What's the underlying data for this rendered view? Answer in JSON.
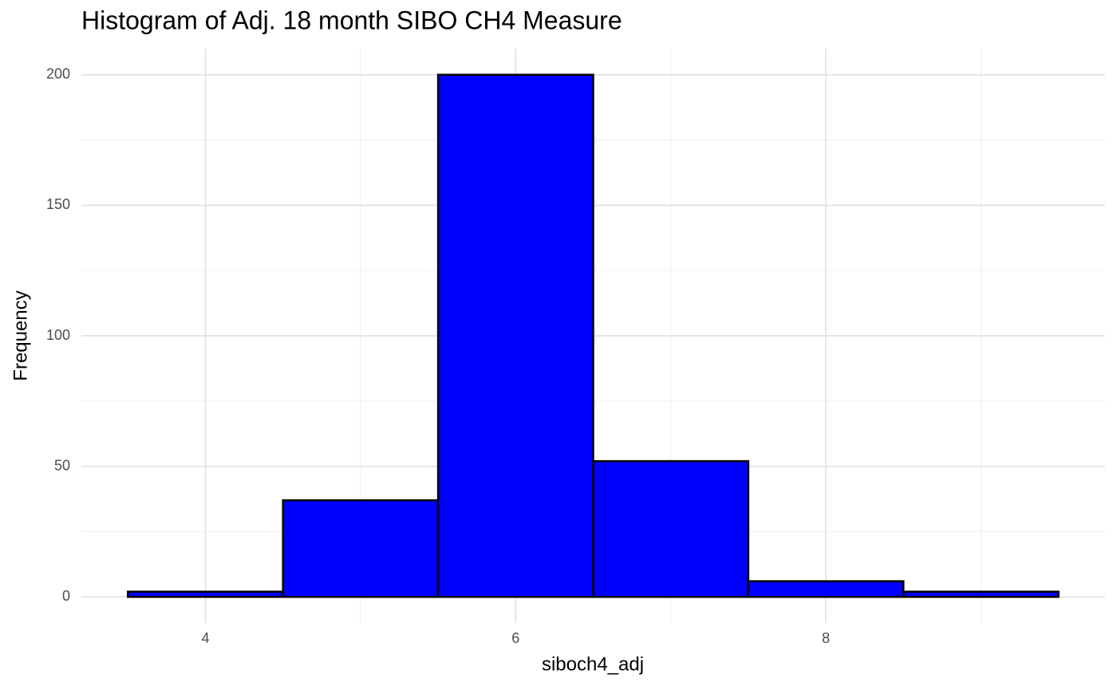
{
  "chart_data": {
    "type": "histogram",
    "title": "Histogram of Adj. 18 month SIBO CH4 Measure",
    "x_label": "siboch4_adj",
    "y_label": "Frequency",
    "bins": [
      3.5,
      4.5,
      5.5,
      6.5,
      7.5,
      8.5,
      9.5
    ],
    "values": [
      2,
      37,
      200,
      52,
      6,
      2
    ],
    "color": "#0000ff",
    "edge_color": "#000000",
    "xlim": [
      3.2,
      9.8
    ],
    "xticks": [
      4,
      6,
      8
    ],
    "x_minor_ticks": [
      5,
      7,
      9
    ],
    "ylim": [
      -10,
      210
    ],
    "yticks": [
      0,
      50,
      100,
      150,
      200
    ],
    "y_minor_ticks": [
      25,
      75,
      125,
      175
    ],
    "grid": true
  }
}
